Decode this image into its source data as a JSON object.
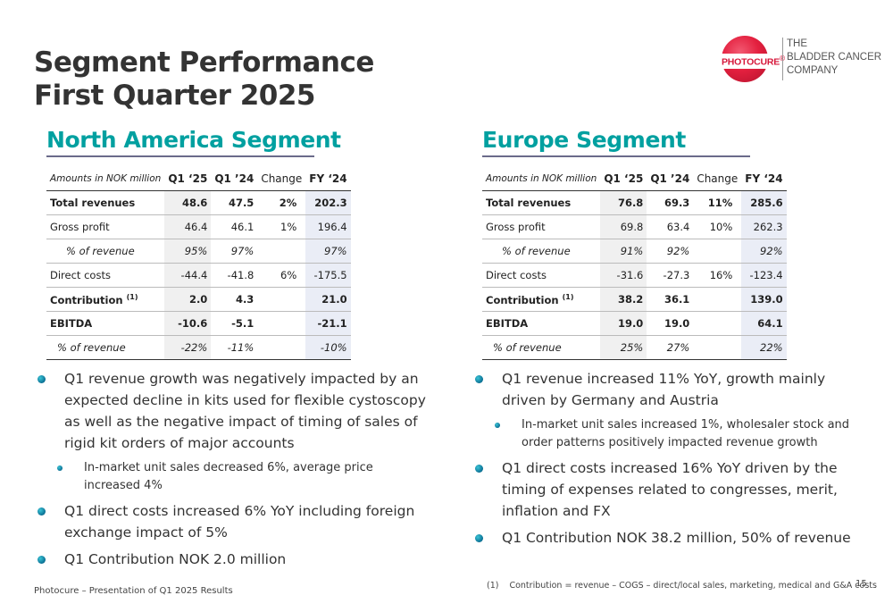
{
  "title": {
    "line1": "Segment Performance",
    "line2": "First Quarter 2025"
  },
  "logo": {
    "wordmark": "PHOTOCURE",
    "registered": "®",
    "tagline": [
      "THE",
      "BLADDER CANCER",
      "COMPANY"
    ],
    "brand_color": "#d6173a"
  },
  "colors": {
    "segment_title": "#00a0a0",
    "bullet": "#0a6f93"
  },
  "north_america": {
    "title": "North America Segment",
    "table": {
      "header": {
        "label": "Amounts in NOK million",
        "q1_25": "Q1 ‘25",
        "q1_24": "Q1 ’24",
        "change": "Change",
        "fy_24": "FY ‘24"
      },
      "rows": [
        {
          "label": "Total revenues",
          "q1_25": "48.6",
          "q1_24": "47.5",
          "change": "2%",
          "fy_24": "202.3"
        },
        {
          "label": "Gross profit",
          "q1_25": "46.4",
          "q1_24": "46.1",
          "change": "1%",
          "fy_24": "196.4"
        },
        {
          "label": "% of revenue",
          "q1_25": "95%",
          "q1_24": "97%",
          "change": "",
          "fy_24": "97%"
        },
        {
          "label": "Direct costs",
          "q1_25": "-44.4",
          "q1_24": "-41.8",
          "change": "6%",
          "fy_24": "-175.5"
        },
        {
          "label": "Contribution",
          "sup": "(1)",
          "q1_25": "2.0",
          "q1_24": "4.3",
          "change": "",
          "fy_24": "21.0"
        },
        {
          "label": "EBITDA",
          "q1_25": "-10.6",
          "q1_24": "-5.1",
          "change": "",
          "fy_24": "-21.1"
        },
        {
          "label": "% of revenue",
          "q1_25": "-22%",
          "q1_24": "-11%",
          "change": "",
          "fy_24": "-10%"
        }
      ]
    },
    "bullets": {
      "b1": "Q1 revenue growth was negatively impacted by an expected decline in kits used for flexible cystoscopy as well as the negative impact of timing of sales of rigid kit orders of major accounts",
      "b1_sub": "In-market unit sales decreased 6%, average price increased 4%",
      "b2": "Q1 direct costs increased 6% YoY including foreign exchange impact of 5%",
      "b3": "Q1 Contribution NOK 2.0 million"
    }
  },
  "europe": {
    "title": "Europe Segment",
    "table": {
      "header": {
        "label": "Amounts in NOK million",
        "q1_25": "Q1 ‘25",
        "q1_24": "Q1 ’24",
        "change": "Change",
        "fy_24": "FY ‘24"
      },
      "rows": [
        {
          "label": "Total revenues",
          "q1_25": "76.8",
          "q1_24": "69.3",
          "change": "11%",
          "fy_24": "285.6"
        },
        {
          "label": "Gross profit",
          "q1_25": "69.8",
          "q1_24": "63.4",
          "change": "10%",
          "fy_24": "262.3"
        },
        {
          "label": "% of revenue",
          "q1_25": "91%",
          "q1_24": "92%",
          "change": "",
          "fy_24": "92%"
        },
        {
          "label": "Direct costs",
          "q1_25": "-31.6",
          "q1_24": "-27.3",
          "change": "16%",
          "fy_24": "-123.4"
        },
        {
          "label": "Contribution",
          "sup": "(1)",
          "q1_25": "38.2",
          "q1_24": "36.1",
          "change": "",
          "fy_24": "139.0"
        },
        {
          "label": "EBITDA",
          "q1_25": "19.0",
          "q1_24": "19.0",
          "change": "",
          "fy_24": "64.1"
        },
        {
          "label": "% of revenue",
          "q1_25": "25%",
          "q1_24": "27%",
          "change": "",
          "fy_24": "22%"
        }
      ]
    },
    "bullets": {
      "b1": "Q1 revenue increased 11% YoY, growth mainly driven by Germany and Austria",
      "b1_sub": "In-market unit sales increased 1%, wholesaler stock and order patterns positively impacted revenue growth",
      "b2": "Q1 direct costs increased 16% YoY driven by the timing of expenses related to congresses, merit, inflation and FX",
      "b3": "Q1 Contribution NOK 38.2 million, 50% of revenue"
    }
  },
  "footer": {
    "left": "Photocure – Presentation of Q1 2025 Results",
    "footnote_num": "(1)",
    "footnote": "Contribution = revenue – COGS – direct/local sales, marketing, medical and G&A costs",
    "page": "15"
  }
}
